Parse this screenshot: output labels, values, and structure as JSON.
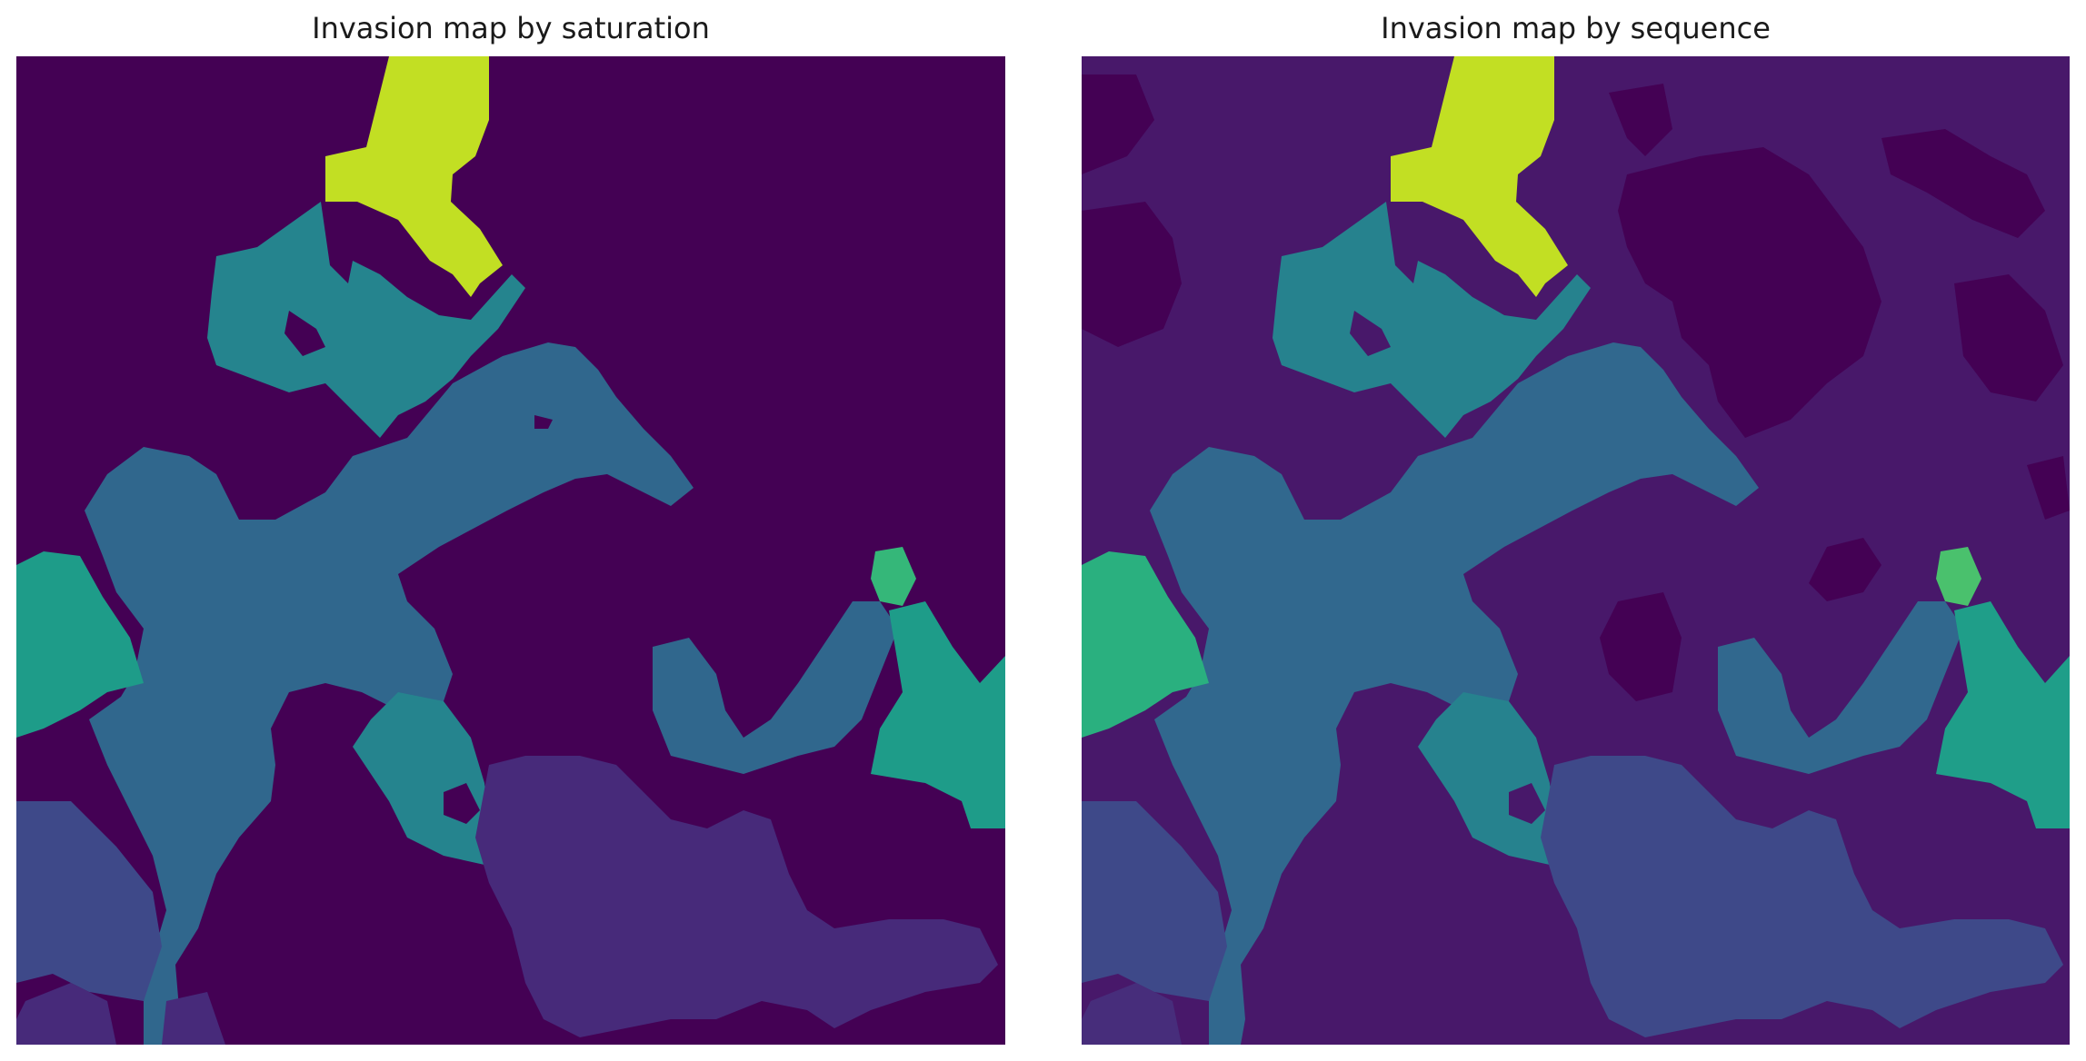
{
  "chart_data": [
    {
      "type": "heatmap",
      "title": "Invasion map by saturation",
      "xlabel": "",
      "ylabel": "",
      "colormap": "viridis",
      "axes_visible": false,
      "grid": false,
      "legend": "none",
      "background_value_color": "#440154",
      "cluster_colors": [
        "#440154",
        "#472a7a",
        "#3e4989",
        "#30678d",
        "#25848e",
        "#1e9c89",
        "#35b779",
        "#4ac16d",
        "#c2df23",
        "#fde725"
      ]
    },
    {
      "type": "heatmap",
      "title": "Invasion map by sequence",
      "xlabel": "",
      "ylabel": "",
      "colormap": "viridis",
      "axes_visible": false,
      "grid": false,
      "legend": "none",
      "background_value_color": "#48186a",
      "cluster_colors": [
        "#440154",
        "#482173",
        "#472d7b",
        "#3e4989",
        "#31688e",
        "#26828e",
        "#1f9e89",
        "#35b779",
        "#4ac16d",
        "#c2df23",
        "#fde725"
      ]
    }
  ]
}
